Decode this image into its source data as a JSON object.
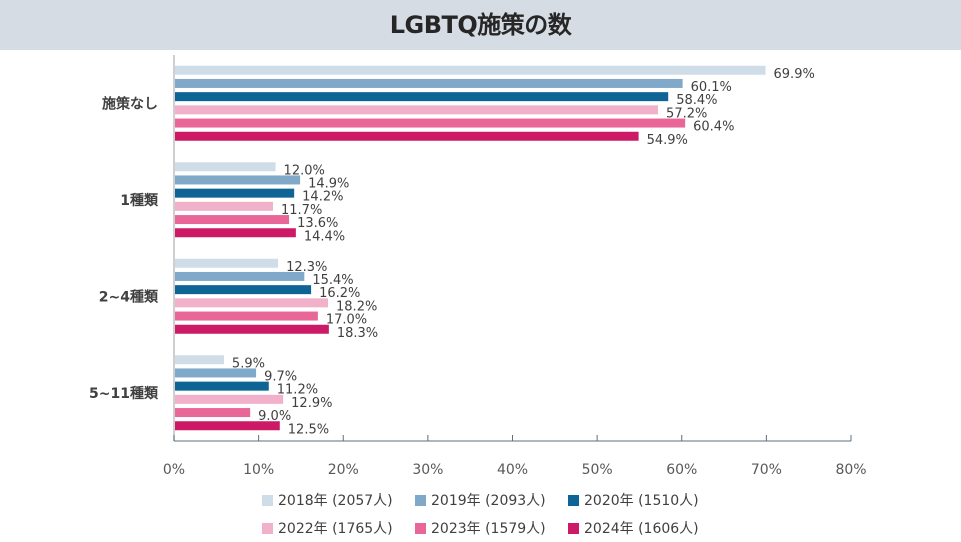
{
  "chart_data": {
    "type": "bar",
    "orientation": "horizontal",
    "title": "LGBTQ施策の数",
    "xlabel": "",
    "ylabel": "",
    "xlim": [
      0,
      80
    ],
    "x_ticks": [
      "0%",
      "10%",
      "20%",
      "30%",
      "40%",
      "50%",
      "60%",
      "70%",
      "80%"
    ],
    "categories": [
      "施策なし",
      "1種類",
      "2~4種類",
      "5~11種類"
    ],
    "series": [
      {
        "name": "2018年 (2057人)",
        "color": "#cfdde9",
        "values": [
          69.9,
          12.0,
          12.3,
          5.9
        ],
        "labels": [
          "69.9%",
          "12.0%",
          "12.3%",
          "5.9%"
        ]
      },
      {
        "name": "2019年 (2093人)",
        "color": "#7fa8c9",
        "values": [
          60.1,
          14.9,
          15.4,
          9.7
        ],
        "labels": [
          "60.1%",
          "14.9%",
          "15.4%",
          "9.7%"
        ]
      },
      {
        "name": "2020年 (1510人)",
        "color": "#0f6496",
        "values": [
          58.4,
          14.2,
          16.2,
          11.2
        ],
        "labels": [
          "58.4%",
          "14.2%",
          "16.2%",
          "11.2%"
        ]
      },
      {
        "name": "2022年 (1765人)",
        "color": "#f2b1cb",
        "values": [
          57.2,
          11.7,
          18.2,
          12.9
        ],
        "labels": [
          "57.2%",
          "11.7%",
          "18.2%",
          "12.9%"
        ]
      },
      {
        "name": "2023年 (1579人)",
        "color": "#e96699",
        "values": [
          60.4,
          13.6,
          17.0,
          9.0
        ],
        "labels": [
          "60.4%",
          "13.6%",
          "17.0%",
          "9.0%"
        ]
      },
      {
        "name": "2024年 (1606人)",
        "color": "#cc1a66",
        "values": [
          54.9,
          14.4,
          18.3,
          12.5
        ],
        "labels": [
          "54.9%",
          "14.4%",
          "18.3%",
          "12.5%"
        ]
      }
    ],
    "legend_position": "bottom",
    "grid": false
  }
}
